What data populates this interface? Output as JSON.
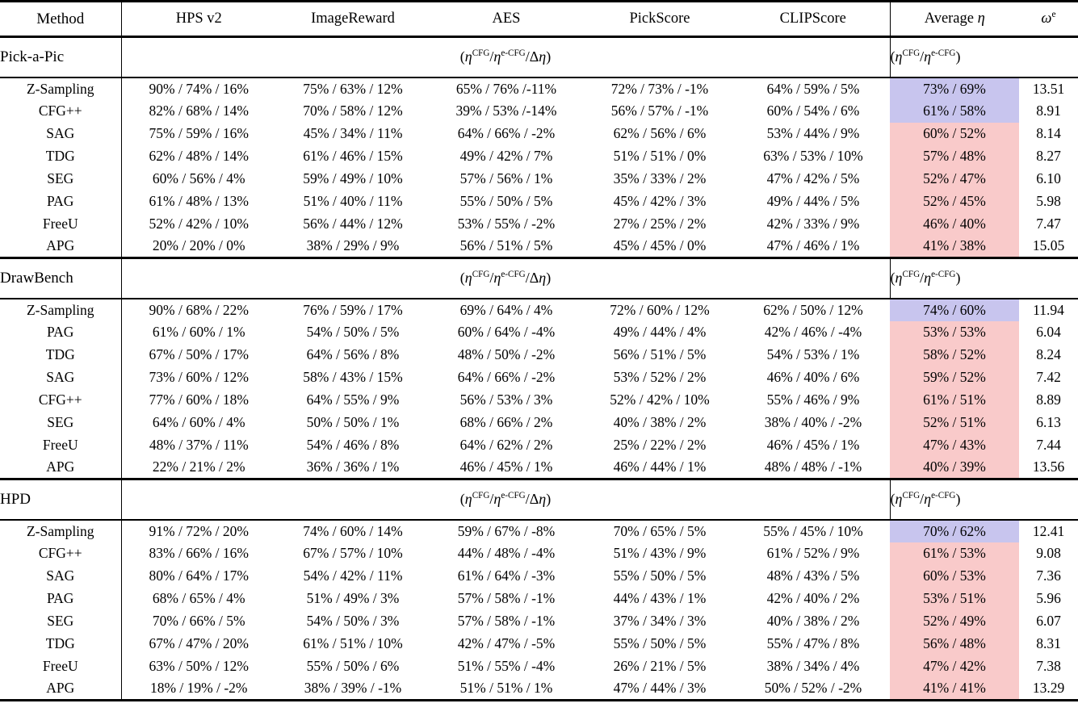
{
  "table": {
    "header": {
      "method_label": "Method",
      "metric_labels": [
        "HPS v2",
        "ImageReward",
        "AES",
        "PickScore",
        "CLIPScore"
      ],
      "average_label": [
        {
          "t": "Average "
        },
        {
          "t": "η",
          "i": true
        }
      ],
      "omega_label": [
        {
          "t": "ω",
          "i": true
        },
        {
          "t": "e",
          "sup": true
        }
      ]
    },
    "formulas": {
      "metric_formula": [
        {
          "t": "("
        },
        {
          "t": "η",
          "i": true
        },
        {
          "t": "CFG",
          "sup": true
        },
        {
          "t": "/"
        },
        {
          "t": "η",
          "i": true
        },
        {
          "t": "e-CFG",
          "sup": true
        },
        {
          "t": "/Δ"
        },
        {
          "t": "η",
          "i": true
        },
        {
          "t": ")"
        }
      ],
      "average_formula": [
        {
          "t": "("
        },
        {
          "t": "η",
          "i": true
        },
        {
          "t": "CFG",
          "sup": true
        },
        {
          "t": "/"
        },
        {
          "t": "η",
          "i": true
        },
        {
          "t": "e-CFG",
          "sup": true
        },
        {
          "t": ")"
        }
      ]
    },
    "highlight_colors": {
      "best_highlight": "#c8c5ee",
      "other_highlight": "#f9caca"
    },
    "sections": [
      {
        "name": "Pick-a-Pic",
        "rows": [
          {
            "method": "Z-Sampling",
            "cells": [
              "90% / 74% / 16%",
              "75% / 63% / 12%",
              "65% / 76% /-11%",
              "72% / 73% / -1%",
              "64% / 59% / 5%"
            ],
            "average": "73% / 69%",
            "highlight": "best",
            "omega": "13.51"
          },
          {
            "method": "CFG++",
            "cells": [
              "82% / 68% / 14%",
              "70% / 58% / 12%",
              "39% / 53% /-14%",
              "56% / 57% / -1%",
              "60% / 54% / 6%"
            ],
            "average": "61% / 58%",
            "highlight": "best",
            "omega": "8.91"
          },
          {
            "method": "SAG",
            "cells": [
              "75% / 59% / 16%",
              "45% / 34% / 11%",
              "64% / 66% / -2%",
              "62% / 56% / 6%",
              "53% / 44% / 9%"
            ],
            "average": "60% / 52%",
            "highlight": "other",
            "omega": "8.14"
          },
          {
            "method": "TDG",
            "cells": [
              "62% / 48% / 14%",
              "61% / 46% / 15%",
              "49% / 42% / 7%",
              "51% / 51% / 0%",
              "63% / 53% / 10%"
            ],
            "average": "57% / 48%",
            "highlight": "other",
            "omega": "8.27"
          },
          {
            "method": "SEG",
            "cells": [
              "60% / 56% / 4%",
              "59% / 49% / 10%",
              "57% / 56% / 1%",
              "35% / 33% / 2%",
              "47% / 42% / 5%"
            ],
            "average": "52% / 47%",
            "highlight": "other",
            "omega": "6.10"
          },
          {
            "method": "PAG",
            "cells": [
              "61% / 48% / 13%",
              "51% / 40% / 11%",
              "55% / 50% / 5%",
              "45% / 42% / 3%",
              "49% / 44% / 5%"
            ],
            "average": "52% / 45%",
            "highlight": "other",
            "omega": "5.98"
          },
          {
            "method": "FreeU",
            "cells": [
              "52% / 42% / 10%",
              "56% / 44% / 12%",
              "53% / 55% / -2%",
              "27% / 25% / 2%",
              "42% / 33% / 9%"
            ],
            "average": "46% / 40%",
            "highlight": "other",
            "omega": "7.47"
          },
          {
            "method": "APG",
            "cells": [
              "20% / 20% / 0%",
              "38% / 29% / 9%",
              "56% / 51% / 5%",
              "45% / 45% / 0%",
              "47% / 46% / 1%"
            ],
            "average": "41% / 38%",
            "highlight": "other",
            "omega": "15.05"
          }
        ]
      },
      {
        "name": "DrawBench",
        "rows": [
          {
            "method": "Z-Sampling",
            "cells": [
              "90% / 68% / 22%",
              "76% / 59% / 17%",
              "69% / 64% / 4%",
              "72% / 60% / 12%",
              "62% / 50% / 12%"
            ],
            "average": "74% / 60%",
            "highlight": "best",
            "omega": "11.94"
          },
          {
            "method": "PAG",
            "cells": [
              "61% / 60% / 1%",
              "54% / 50% / 5%",
              "60% / 64% / -4%",
              "49% / 44% / 4%",
              "42% / 46% / -4%"
            ],
            "average": "53% / 53%",
            "highlight": "other",
            "omega": "6.04"
          },
          {
            "method": "TDG",
            "cells": [
              "67% / 50% / 17%",
              "64% / 56% / 8%",
              "48% / 50% / -2%",
              "56% / 51% / 5%",
              "54% / 53% / 1%"
            ],
            "average": "58% / 52%",
            "highlight": "other",
            "omega": "8.24"
          },
          {
            "method": "SAG",
            "cells": [
              "73% / 60% / 12%",
              "58% / 43% / 15%",
              "64% / 66% / -2%",
              "53% / 52% / 2%",
              "46% / 40% / 6%"
            ],
            "average": "59% / 52%",
            "highlight": "other",
            "omega": "7.42"
          },
          {
            "method": "CFG++",
            "cells": [
              "77% / 60% / 18%",
              "64% / 55% / 9%",
              "56% / 53% / 3%",
              "52% / 42% / 10%",
              "55% / 46% / 9%"
            ],
            "average": "61% / 51%",
            "highlight": "other",
            "omega": "8.89"
          },
          {
            "method": "SEG",
            "cells": [
              "64% / 60% / 4%",
              "50% / 50% / 1%",
              "68% / 66% / 2%",
              "40% / 38% / 2%",
              "38% / 40% / -2%"
            ],
            "average": "52% / 51%",
            "highlight": "other",
            "omega": "6.13"
          },
          {
            "method": "FreeU",
            "cells": [
              "48% / 37% / 11%",
              "54% / 46% / 8%",
              "64% / 62% / 2%",
              "25% / 22% / 2%",
              "46% / 45% / 1%"
            ],
            "average": "47% / 43%",
            "highlight": "other",
            "omega": "7.44"
          },
          {
            "method": "APG",
            "cells": [
              "22% / 21% / 2%",
              "36% / 36% / 1%",
              "46% / 45% / 1%",
              "46% / 44% / 1%",
              "48% / 48% / -1%"
            ],
            "average": "40% / 39%",
            "highlight": "other",
            "omega": "13.56"
          }
        ]
      },
      {
        "name": "HPD",
        "rows": [
          {
            "method": "Z-Sampling",
            "cells": [
              "91% / 72% / 20%",
              "74% / 60% / 14%",
              "59% / 67% / -8%",
              "70% / 65% / 5%",
              "55% / 45% / 10%"
            ],
            "average": "70% / 62%",
            "highlight": "best",
            "omega": "12.41"
          },
          {
            "method": "CFG++",
            "cells": [
              "83% / 66% / 16%",
              "67% / 57% / 10%",
              "44% / 48% / -4%",
              "51% / 43% / 9%",
              "61% / 52% / 9%"
            ],
            "average": "61% / 53%",
            "highlight": "other",
            "omega": "9.08"
          },
          {
            "method": "SAG",
            "cells": [
              "80% / 64% / 17%",
              "54% / 42% / 11%",
              "61% / 64% / -3%",
              "55% / 50% / 5%",
              "48% / 43% / 5%"
            ],
            "average": "60% / 53%",
            "highlight": "other",
            "omega": "7.36"
          },
          {
            "method": "PAG",
            "cells": [
              "68% / 65% / 4%",
              "51% / 49% / 3%",
              "57% / 58% / -1%",
              "44% / 43% / 1%",
              "42% / 40% / 2%"
            ],
            "average": "53% / 51%",
            "highlight": "other",
            "omega": "5.96"
          },
          {
            "method": "SEG",
            "cells": [
              "70% / 66% / 5%",
              "54% / 50% / 3%",
              "57% / 58% / -1%",
              "37% / 34% / 3%",
              "40% / 38% / 2%"
            ],
            "average": "52% / 49%",
            "highlight": "other",
            "omega": "6.07"
          },
          {
            "method": "TDG",
            "cells": [
              "67% / 47% / 20%",
              "61% / 51% / 10%",
              "42% / 47% / -5%",
              "55% / 50% / 5%",
              "55% / 47% / 8%"
            ],
            "average": "56% / 48%",
            "highlight": "other",
            "omega": "8.31"
          },
          {
            "method": "FreeU",
            "cells": [
              "63% / 50% / 12%",
              "55% / 50% / 6%",
              "51% / 55% / -4%",
              "26% / 21% / 5%",
              "38% / 34% / 4%"
            ],
            "average": "47% / 42%",
            "highlight": "other",
            "omega": "7.38"
          },
          {
            "method": "APG",
            "cells": [
              "18% / 19% / -2%",
              "38% / 39% / -1%",
              "51% / 51% / 1%",
              "47% / 44% / 3%",
              "50% / 52% / -2%"
            ],
            "average": "41% / 41%",
            "highlight": "other",
            "omega": "13.29"
          }
        ]
      }
    ]
  }
}
